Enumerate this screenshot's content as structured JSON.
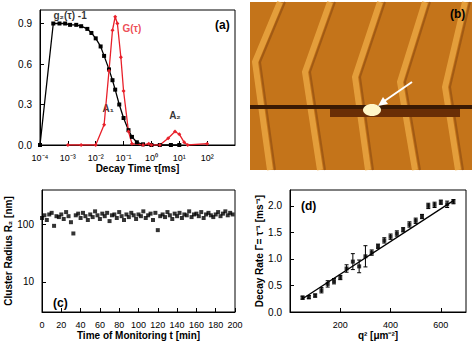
{
  "chart_data": [
    {
      "type": "line",
      "title": "(a)",
      "log": "x",
      "x_label": "Decay Time τ[ms]",
      "xlim": [
        0.0001,
        1000
      ],
      "xticks": [
        {
          "value": 0.0001,
          "label": "10⁻⁴"
        },
        {
          "value": 0.001,
          "label": "10⁻³"
        },
        {
          "value": 0.01,
          "label": "10⁻²"
        },
        {
          "value": 0.1,
          "label": "10⁻¹"
        },
        {
          "value": 1,
          "label": "10⁰"
        },
        {
          "value": 10,
          "label": "10¹"
        },
        {
          "value": 100,
          "label": "10²"
        }
      ],
      "ylim": [
        0,
        1.0
      ],
      "yticks": [
        {
          "value": 0,
          "label": "0.0"
        },
        0.3,
        0.6,
        0.9
      ],
      "series": [
        {
          "type": "line",
          "color": "#000000",
          "marker": "square",
          "line_style": "solid",
          "x": [
            0.0001,
            0.0003,
            0.0005,
            0.0008,
            0.0012,
            0.002,
            0.003,
            0.005,
            0.007,
            0.01,
            0.015,
            0.02,
            0.03,
            0.04,
            0.05,
            0.07,
            0.1,
            0.15,
            0.2,
            0.3,
            0.5,
            1,
            2,
            5,
            10
          ],
          "values": [
            0.0,
            0.9,
            0.9,
            0.9,
            0.89,
            0.89,
            0.88,
            0.86,
            0.83,
            0.79,
            0.73,
            0.66,
            0.56,
            0.48,
            0.41,
            0.3,
            0.2,
            0.11,
            0.06,
            0.02,
            0.005,
            0.0,
            0.0,
            0.0,
            0.0
          ]
        },
        {
          "type": "line",
          "color": "#e8202a",
          "marker": "diamond",
          "line_style": "solid",
          "x": [
            0.001,
            0.003,
            0.01,
            0.02,
            0.03,
            0.04,
            0.05,
            0.06,
            0.08,
            0.1,
            0.15,
            0.2,
            0.5,
            0.8,
            1,
            2,
            4,
            7,
            10,
            15,
            20,
            100
          ],
          "values": [
            0.0,
            0.0,
            0.0,
            0.15,
            0.55,
            0.85,
            0.95,
            0.9,
            0.65,
            0.4,
            0.1,
            0.01,
            0.0,
            0.01,
            0.0,
            0.0,
            0.05,
            0.1,
            0.08,
            0.02,
            0.0,
            0.01
          ]
        }
      ],
      "annotations": [
        {
          "text": "g₂(τ) -1",
          "x": 0.0012,
          "y": 0.96,
          "color": "#000000"
        },
        {
          "text": "G(τ)",
          "x": 0.2,
          "y": 0.86,
          "color": "#e8202a"
        },
        {
          "text": "A₁",
          "x": 0.028,
          "y": 0.27,
          "color": "#000000"
        },
        {
          "text": "A₂",
          "x": 7,
          "y": 0.22,
          "color": "#000000"
        }
      ]
    },
    {
      "type": "image",
      "title": "(b)"
    },
    {
      "type": "scatter",
      "title": "(c)",
      "log": "y",
      "x_label": "Time of Monitoring t [min]",
      "y_label": "Cluster Radius R₂ [nm]",
      "xlim": [
        0,
        200
      ],
      "xticks": [
        0,
        20,
        40,
        60,
        80,
        100,
        120,
        140,
        160,
        180,
        200
      ],
      "ylim": [
        3,
        400
      ],
      "yticks": [
        10,
        100
      ],
      "series": [
        {
          "type": "scatter",
          "color": "#000000",
          "marker": "square",
          "x": [
            0,
            2.5,
            5,
            7.5,
            10,
            12.5,
            15,
            17.5,
            20,
            22.5,
            25,
            27.5,
            30,
            32.5,
            35,
            37.5,
            40,
            42.5,
            45,
            47.5,
            50,
            52.5,
            55,
            57.5,
            60,
            62.5,
            65,
            67.5,
            70,
            72.5,
            75,
            77.5,
            80,
            82.5,
            85,
            87.5,
            90,
            92.5,
            95,
            97.5,
            100,
            102.5,
            105,
            107.5,
            110,
            112.5,
            115,
            117.5,
            120,
            122.5,
            125,
            127.5,
            130,
            132.5,
            135,
            137.5,
            140,
            142.5,
            145,
            147.5,
            150,
            152.5,
            155,
            157.5,
            160,
            162.5,
            165,
            167.5,
            170,
            172.5,
            175,
            177.5,
            180,
            182.5,
            185,
            187.5,
            190,
            192.5,
            195,
            197.5
          ],
          "values": [
            130,
            145,
            120,
            150,
            160,
            95,
            140,
            135,
            150,
            125,
            165,
            140,
            110,
            70,
            145,
            155,
            130,
            160,
            140,
            120,
            150,
            135,
            170,
            145,
            125,
            155,
            140,
            160,
            115,
            145,
            150,
            130,
            165,
            140,
            120,
            150,
            135,
            160,
            145,
            125,
            150,
            140,
            170,
            130,
            145,
            155,
            120,
            160,
            80,
            140,
            150,
            135,
            165,
            145,
            125,
            155,
            140,
            160,
            130,
            150,
            145,
            170,
            135,
            150,
            155,
            140,
            165,
            130,
            150,
            160,
            145,
            135,
            150,
            165,
            140,
            155,
            170,
            145,
            160,
            150
          ]
        }
      ]
    },
    {
      "type": "scatter",
      "title": "(d)",
      "x_label": "q² [μm⁻²]",
      "y_label": "Decay Rate Γ= τ⁻¹ [ms⁻¹]",
      "xlim": [
        0,
        700
      ],
      "xticks": [
        200,
        400,
        600
      ],
      "ylim": [
        0,
        2.3
      ],
      "yticks": [
        {
          "value": 0,
          "label": "0.0"
        },
        0.5,
        {
          "value": 1,
          "label": "1.0"
        },
        1.5,
        {
          "value": 2,
          "label": "2.0"
        }
      ],
      "series": [
        {
          "type": "scatter",
          "color": "#000000",
          "marker": "square",
          "x": [
            50,
            75,
            100,
            125,
            150,
            175,
            200,
            225,
            250,
            275,
            300,
            325,
            350,
            375,
            400,
            425,
            450,
            475,
            500,
            525,
            550,
            575,
            600,
            625,
            650
          ],
          "values": [
            0.27,
            0.28,
            0.31,
            0.41,
            0.53,
            0.58,
            0.65,
            0.82,
            0.95,
            0.86,
            1.05,
            1.12,
            1.24,
            1.35,
            1.42,
            1.48,
            1.55,
            1.65,
            1.72,
            1.8,
            2.0,
            2.02,
            2.07,
            2.03,
            2.08
          ],
          "errors": [
            0.03,
            0.03,
            0.03,
            0.05,
            0.06,
            0.05,
            0.04,
            0.07,
            0.15,
            0.12,
            0.2,
            0.05,
            0.04,
            0.05,
            0.05,
            0.05,
            0.04,
            0.05,
            0.05,
            0.04,
            0.05,
            0.05,
            0.04,
            0.06,
            0.04
          ]
        },
        {
          "type": "line",
          "color": "#000000",
          "marker": "none",
          "line_style": "solid",
          "x": [
            50,
            650
          ],
          "values": [
            0.25,
            2.1
          ]
        }
      ]
    }
  ]
}
